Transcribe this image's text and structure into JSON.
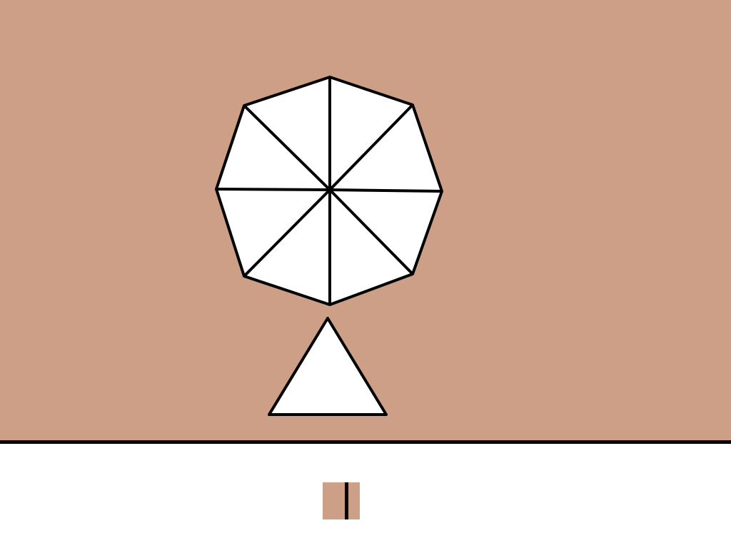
{
  "scene": {
    "background_color": "#cd9f87",
    "shape_fill": "#ffffff",
    "outline_color": "#000000",
    "shapes": [
      {
        "name": "octagon",
        "type": "octagon",
        "segments": 8
      },
      {
        "name": "triangle",
        "type": "triangle"
      }
    ]
  },
  "toolbar": {
    "background_color": "#ffffff",
    "swatch_color": "#cd9f87",
    "swatch_marker": "vertical-bar"
  }
}
